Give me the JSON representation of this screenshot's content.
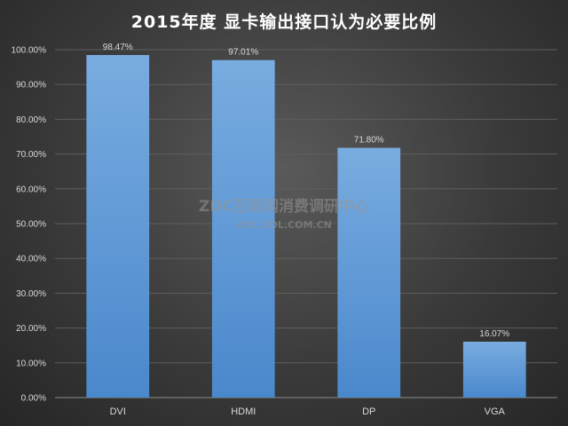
{
  "chart_data": {
    "type": "bar",
    "title": "2015年度 显卡输出接口认为必要比例",
    "xlabel": "",
    "ylabel": "",
    "categories": [
      "DVI",
      "HDMI",
      "DP",
      "VGA"
    ],
    "values": [
      98.47,
      97.01,
      71.8,
      16.07
    ],
    "data_labels": [
      "98.47%",
      "97.01%",
      "71.80%",
      "16.07%"
    ],
    "ylim": [
      0,
      100
    ],
    "yticks": [
      0,
      10,
      20,
      30,
      40,
      50,
      60,
      70,
      80,
      90,
      100
    ],
    "ytick_labels": [
      "0.00%",
      "10.00%",
      "20.00%",
      "30.00%",
      "40.00%",
      "50.00%",
      "60.00%",
      "70.00%",
      "80.00%",
      "90.00%",
      "100.00%"
    ],
    "grid": true,
    "bar_color": "#5b9bd5"
  },
  "watermark": {
    "line1": "ZDC互联网消费调研中心",
    "line2": "ZDC.ZOL.COM.CN"
  }
}
